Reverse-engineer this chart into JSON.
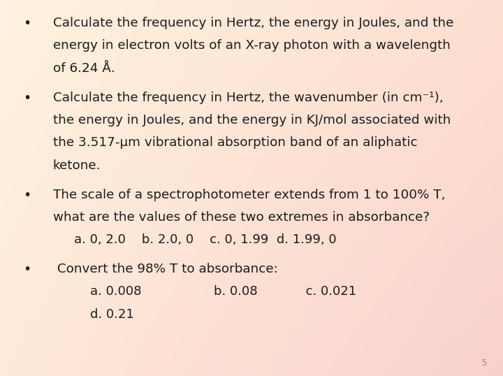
{
  "page_number": "5",
  "bullets": [
    {
      "lines": [
        "Calculate the frequency in Hertz, the energy in Joules, and the",
        "energy in electron volts of an X-ray photon with a wavelength",
        "of 6.24 Å."
      ],
      "subs": []
    },
    {
      "lines": [
        "Calculate the frequency in Hertz, the wavenumber (in cm⁻¹),",
        "the energy in Joules, and the energy in KJ/mol associated with",
        "the 3.517-μm vibrational absorption band of an aliphatic",
        "ketone."
      ],
      "subs": []
    },
    {
      "lines": [
        "The scale of a spectrophotometer extends from 1 to 100% T,",
        "what are the values of these two extremes in absorbance?"
      ],
      "subs": [
        "    a. 0, 2.0    b. 2.0, 0    c. 0, 1.99  d. 1.99, 0"
      ]
    },
    {
      "lines": [
        " Convert the 98% T to absorbance:"
      ],
      "subs": [
        "        a. 0.008                  b. 0.08            c. 0.021",
        "        d. 0.21"
      ]
    }
  ],
  "text_color": "#1c1c1c",
  "font_size_main": 13.2,
  "font_size_sub": 13.0,
  "bullet_char": "•",
  "tl_color": [
    1.0,
    0.953,
    0.878
  ],
  "tr_color": [
    0.996,
    0.878,
    0.82
  ],
  "bl_color": [
    1.0,
    0.918,
    0.855
  ],
  "br_color": [
    0.976,
    0.82,
    0.8
  ]
}
